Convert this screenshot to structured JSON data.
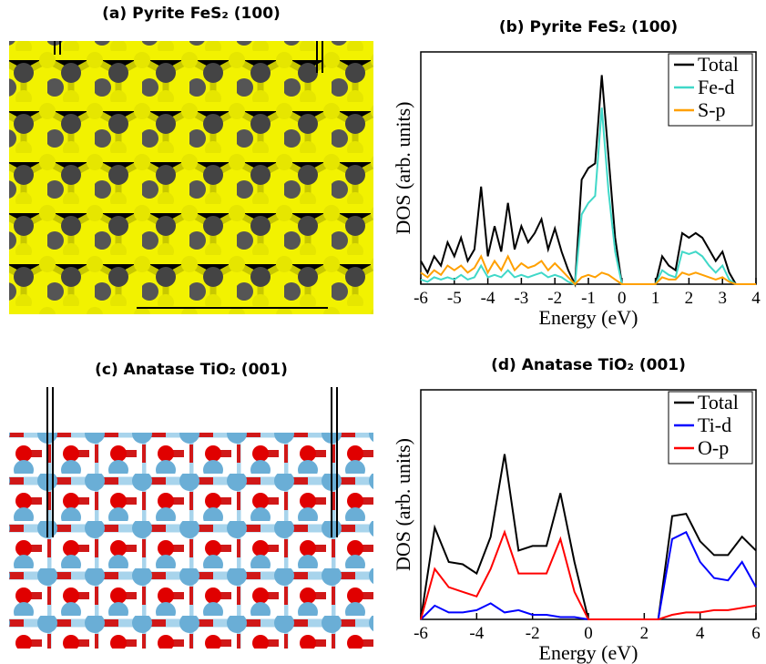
{
  "structures": [
    {
      "title": "(a) Pyrite FeS₂ (100)"
    },
    {
      "title": "(c) Anatase TiO₂ (001)"
    }
  ],
  "chart_data": [
    {
      "type": "line",
      "title": "(b) Pyrite FeS₂ (100)",
      "x_label": "Energy (eV)",
      "y_label": "DOS (arb. units)",
      "x": [
        -6,
        -5.8,
        -5.6,
        -5.4,
        -5.2,
        -5,
        -4.8,
        -4.6,
        -4.4,
        -4.2,
        -4,
        -3.8,
        -3.6,
        -3.4,
        -3.2,
        -3,
        -2.8,
        -2.6,
        -2.4,
        -2.2,
        -2,
        -1.8,
        -1.6,
        -1.4,
        -1.2,
        -1,
        -0.8,
        -0.6,
        -0.4,
        -0.2,
        0,
        0.2,
        0.4,
        0.6,
        0.8,
        1,
        1.2,
        1.4,
        1.6,
        1.8,
        2,
        2.2,
        2.4,
        2.6,
        2.8,
        3,
        3.2,
        3.4,
        3.6,
        3.8,
        4
      ],
      "series": [
        {
          "name": "Total",
          "color": "#000000",
          "values": [
            10,
            5,
            12,
            8,
            18,
            12,
            20,
            10,
            15,
            42,
            12,
            25,
            14,
            35,
            15,
            25,
            18,
            22,
            28,
            15,
            24,
            14,
            6,
            0,
            45,
            50,
            52,
            90,
            55,
            20,
            0,
            0,
            0,
            0,
            0,
            0,
            12,
            8,
            6,
            22,
            20,
            22,
            20,
            15,
            10,
            14,
            5,
            0,
            0,
            0,
            0
          ]
        },
        {
          "name": "Fe-d",
          "color": "#40d8c8",
          "values": [
            2,
            1,
            3,
            2,
            3,
            2,
            4,
            2,
            3,
            8,
            3,
            4,
            3,
            6,
            3,
            4,
            3,
            4,
            5,
            3,
            4,
            3,
            1,
            0,
            30,
            35,
            38,
            76,
            40,
            14,
            0,
            0,
            0,
            0,
            0,
            0,
            6,
            4,
            3,
            14,
            13,
            14,
            12,
            8,
            5,
            8,
            2,
            0,
            0,
            0,
            0
          ]
        },
        {
          "name": "S-p",
          "color": "#ffa000",
          "values": [
            5,
            3,
            6,
            4,
            8,
            6,
            8,
            5,
            7,
            12,
            5,
            10,
            6,
            12,
            6,
            9,
            7,
            8,
            10,
            6,
            9,
            6,
            3,
            0,
            3,
            4,
            3,
            5,
            4,
            2,
            0,
            0,
            0,
            0,
            0,
            0,
            3,
            2,
            2,
            5,
            4,
            5,
            4,
            3,
            2,
            3,
            1,
            0,
            0,
            0,
            0
          ]
        }
      ],
      "xlim": [
        -6,
        4
      ],
      "xticks": [
        -6,
        -5,
        -4,
        -3,
        -2,
        -1,
        0,
        1,
        2,
        3,
        4
      ],
      "ylim": [
        0,
        100
      ],
      "legend": "upper right"
    },
    {
      "type": "line",
      "title": "(d) Anatase TiO₂ (001)",
      "x_label": "Energy (eV)",
      "y_label": "DOS (arb. units)",
      "x": [
        -6,
        -5.5,
        -5,
        -4.5,
        -4,
        -3.5,
        -3,
        -2.5,
        -2,
        -1.5,
        -1,
        -0.5,
        0,
        0.5,
        1,
        1.5,
        2,
        2.5,
        3,
        3.5,
        4,
        4.5,
        5,
        5.5,
        6
      ],
      "series": [
        {
          "name": "Total",
          "color": "#000000",
          "values": [
            0,
            40,
            25,
            24,
            20,
            36,
            72,
            30,
            32,
            32,
            55,
            25,
            0,
            0,
            0,
            0,
            0,
            0,
            45,
            46,
            34,
            28,
            28,
            36,
            30
          ]
        },
        {
          "name": "Ti-d",
          "color": "#0000ff",
          "values": [
            0,
            6,
            3,
            3,
            4,
            7,
            3,
            4,
            2,
            2,
            1,
            1,
            0,
            0,
            0,
            0,
            0,
            0,
            35,
            38,
            25,
            18,
            17,
            25,
            14
          ]
        },
        {
          "name": "O-p",
          "color": "#ff0000",
          "values": [
            0,
            22,
            14,
            12,
            10,
            22,
            38,
            20,
            20,
            20,
            35,
            12,
            0,
            0,
            0,
            0,
            0,
            0,
            2,
            3,
            3,
            4,
            4,
            5,
            6
          ]
        }
      ],
      "xlim": [
        -6,
        6
      ],
      "xticks": [
        -6,
        -4,
        -2,
        0,
        2,
        4,
        6
      ],
      "ylim": [
        0,
        100
      ],
      "legend": "upper right"
    }
  ]
}
